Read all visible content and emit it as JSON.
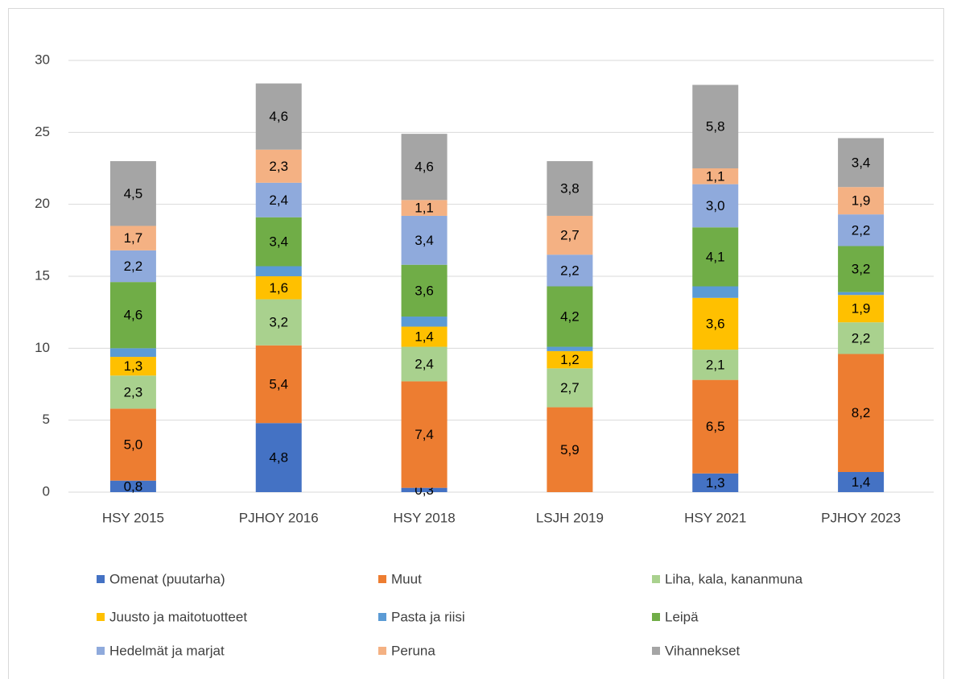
{
  "chart_data": {
    "type": "stacked_bar",
    "categories": [
      "HSY 2015",
      "PJHOY 2016",
      "HSY 2018",
      "LSJH 2019",
      "HSY 2021",
      "PJHOY 2023"
    ],
    "ylim": [
      0,
      30
    ],
    "yticks": [
      0,
      5,
      10,
      15,
      20,
      25,
      30
    ],
    "grid": true,
    "legend": "bottom",
    "series": [
      {
        "name": "Omenat (puutarha)",
        "color": "#4472c4",
        "values": [
          0.8,
          4.8,
          0.3,
          null,
          1.3,
          1.4
        ],
        "value_labels": [
          "0,8",
          "4,8",
          "0,3",
          null,
          "1,3",
          "1,4"
        ]
      },
      {
        "name": "Muut",
        "color": "#ed7d31",
        "values": [
          5.0,
          5.4,
          7.4,
          5.9,
          6.5,
          8.2
        ],
        "value_labels": [
          "5,0",
          "5,4",
          "7,4",
          "5,9",
          "6,5",
          "8,2"
        ]
      },
      {
        "name": "Liha, kala, kananmuna",
        "color": "#a9d18e",
        "values": [
          2.3,
          3.2,
          2.4,
          2.7,
          2.1,
          2.2
        ],
        "value_labels": [
          "2,3",
          "3,2",
          "2,4",
          "2,7",
          "2,1",
          "2,2"
        ]
      },
      {
        "name": "Juusto ja maitotuotteet",
        "color": "#ffc000",
        "values": [
          1.3,
          1.6,
          1.4,
          1.2,
          3.6,
          1.9
        ],
        "value_labels": [
          "1,3",
          "1,6",
          "1,4",
          "1,2",
          "3,6",
          "1,9"
        ]
      },
      {
        "name": "Pasta ja riisi",
        "color": "#5b9bd5",
        "values": [
          0.6,
          0.7,
          0.7,
          0.3,
          0.8,
          0.2
        ]
      },
      {
        "name": "Leipä",
        "color": "#70ad47",
        "values": [
          4.6,
          3.4,
          3.6,
          4.2,
          4.1,
          3.2
        ],
        "value_labels": [
          "4,6",
          "3,4",
          "3,6",
          "4,2",
          "4,1",
          "3,2"
        ]
      },
      {
        "name": "Hedelmät ja marjat",
        "color": "#8faadc",
        "values": [
          2.2,
          2.4,
          3.4,
          2.2,
          3.0,
          2.2
        ],
        "value_labels": [
          "2,2",
          "2,4",
          "3,4",
          "2,2",
          "3,0",
          "2,2"
        ]
      },
      {
        "name": "Peruna",
        "color": "#f4b183",
        "values": [
          1.7,
          2.3,
          1.1,
          2.7,
          1.1,
          1.9
        ],
        "value_labels": [
          "1,7",
          "2,3",
          "1,1",
          "2,7",
          "1,1",
          "1,9"
        ]
      },
      {
        "name": "Vihannekset",
        "color": "#a5a5a5",
        "values": [
          4.5,
          4.6,
          4.6,
          3.8,
          5.8,
          3.4
        ],
        "value_labels": [
          "4,5",
          "4,6",
          "4,6",
          "3,8",
          "5,8",
          "3,4"
        ]
      }
    ]
  }
}
